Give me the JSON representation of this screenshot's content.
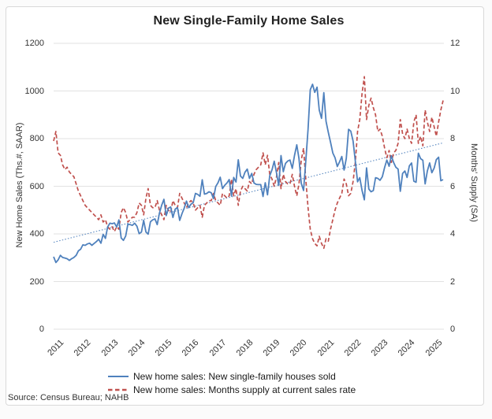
{
  "source_note": "Source: Census Bureau; NAHB",
  "colors": {
    "sales_line": "#4F81BD",
    "supply_line": "#C0504D",
    "trend_line": "#4F81BD",
    "gridline": "#e2e2e2",
    "axis_text": "#333333",
    "title_text": "#222222"
  },
  "chart_data": {
    "type": "line",
    "title": "New Single-Family Home Sales",
    "x_unit": "month",
    "x_range": [
      "2011-01",
      "2025-06"
    ],
    "x_tick_labels": [
      "2011",
      "2012",
      "2013",
      "2014",
      "2015",
      "2016",
      "2017",
      "2018",
      "2019",
      "2020",
      "2021",
      "2022",
      "2023",
      "2024",
      "2025"
    ],
    "left_axis": {
      "label": "New Home Sales (Ths.#, SAAR)",
      "range": [
        0,
        1200
      ],
      "ticks": [
        1200,
        1000,
        800,
        600,
        400,
        200,
        0
      ]
    },
    "right_axis": {
      "label": "Months' Supply (SA)",
      "range": [
        0,
        12
      ],
      "ticks": [
        12,
        10,
        8,
        6,
        4,
        2,
        0
      ]
    },
    "grid": "horizontal-only",
    "legend_position": "bottom",
    "series": [
      {
        "name": "New home sales: New single-family houses sold",
        "axis": "left",
        "line_style": "solid",
        "color": "#4F81BD",
        "values": [
          304,
          280,
          291,
          310,
          301,
          299,
          296,
          289,
          296,
          301,
          310,
          329,
          336,
          354,
          352,
          358,
          361,
          352,
          360,
          368,
          378,
          361,
          398,
          381,
          429,
          445,
          443,
          446,
          429,
          459,
          383,
          373,
          391,
          441,
          439,
          436,
          445,
          432,
          401,
          408,
          457,
          408,
          399,
          451,
          459,
          463,
          439,
          487,
          521,
          545,
          477,
          508,
          513,
          469,
          504,
          510,
          457,
          485,
          508,
          538,
          510,
          525,
          531,
          570,
          566,
          558,
          627,
          567,
          570,
          577,
          573,
          548,
          599,
          615,
          638,
          590,
          604,
          614,
          628,
          559,
          637,
          618,
          711,
          643,
          633,
          659,
          672,
          633,
          654,
          614,
          608,
          607,
          607,
          557,
          615,
          564,
          644,
          669,
          705,
          656,
          604,
          729,
          661,
          696,
          706,
          710,
          675,
          729,
          774,
          716,
          612,
          582,
          704,
          839,
          1005,
          1028,
          994,
          1016,
          920,
          885,
          993,
          873,
          826,
          785,
          740,
          720,
          683,
          702,
          725,
          668,
          717,
          839,
          831,
          790,
          707,
          619,
          636,
          582,
          543,
          677,
          588,
          577,
          582,
          636,
          633,
          625,
          640,
          679,
          710,
          684,
          728,
          700,
          680,
          672,
          579,
          654,
          664,
          637,
          686,
          698,
          621,
          617,
          739,
          716,
          709,
          610,
          664,
          698,
          657,
          676,
          712,
          722,
          623,
          628
        ]
      },
      {
        "name": "New home sales: Months supply at current sales rate",
        "axis": "right",
        "line_style": "dashed",
        "color": "#C0504D",
        "values": [
          7.9,
          8.3,
          7.4,
          7.3,
          6.9,
          6.7,
          6.8,
          6.6,
          6.5,
          6.4,
          6.1,
          5.8,
          5.6,
          5.4,
          5.2,
          5.1,
          5.0,
          4.9,
          4.8,
          4.7,
          4.6,
          4.8,
          4.5,
          4.6,
          4.3,
          4.2,
          4.3,
          4.1,
          4.3,
          4.2,
          4.9,
          5.1,
          4.9,
          4.5,
          4.6,
          4.7,
          4.7,
          4.9,
          5.3,
          5.2,
          4.8,
          5.5,
          5.9,
          5.2,
          5.1,
          5.1,
          5.4,
          5.0,
          4.8,
          4.6,
          5.2,
          5.0,
          4.9,
          5.4,
          5.2,
          5.1,
          5.7,
          5.5,
          5.3,
          5.1,
          5.3,
          5.4,
          5.3,
          5.0,
          5.1,
          5.2,
          4.7,
          5.2,
          5.3,
          5.4,
          5.4,
          5.7,
          5.4,
          5.3,
          5.2,
          5.7,
          5.6,
          5.5,
          5.6,
          6.3,
          5.6,
          5.9,
          5.2,
          5.8,
          6.0,
          5.9,
          5.8,
          6.2,
          6.1,
          6.5,
          6.7,
          6.8,
          6.9,
          7.4,
          6.9,
          7.3,
          6.5,
          6.3,
          6.0,
          6.4,
          7.0,
          5.9,
          6.5,
          6.2,
          6.1,
          6.1,
          6.5,
          6.0,
          5.6,
          6.1,
          7.1,
          7.6,
          6.3,
          5.1,
          4.2,
          3.8,
          3.6,
          3.5,
          3.9,
          3.6,
          3.4,
          3.8,
          3.7,
          4.2,
          4.6,
          5.0,
          5.3,
          5.5,
          5.7,
          6.3,
          6.1,
          5.6,
          5.7,
          6.2,
          7.0,
          8.3,
          8.8,
          9.9,
          10.6,
          8.8,
          9.4,
          9.7,
          9.3,
          9.0,
          8.3,
          8.4,
          8.1,
          7.6,
          7.2,
          7.5,
          7.0,
          7.4,
          7.5,
          7.8,
          8.8,
          8.2,
          8.0,
          8.4,
          8.0,
          7.8,
          8.7,
          9.0,
          7.8,
          8.1,
          7.7,
          9.2,
          8.7,
          8.3,
          8.9,
          8.5,
          8.1,
          8.7,
          9.2,
          9.6
        ]
      }
    ],
    "trend_line": {
      "applies_to": "New home sales: New single-family houses sold",
      "line_style": "dotted",
      "color": "#4F81BD",
      "start_value": 365,
      "end_value": 782
    }
  }
}
